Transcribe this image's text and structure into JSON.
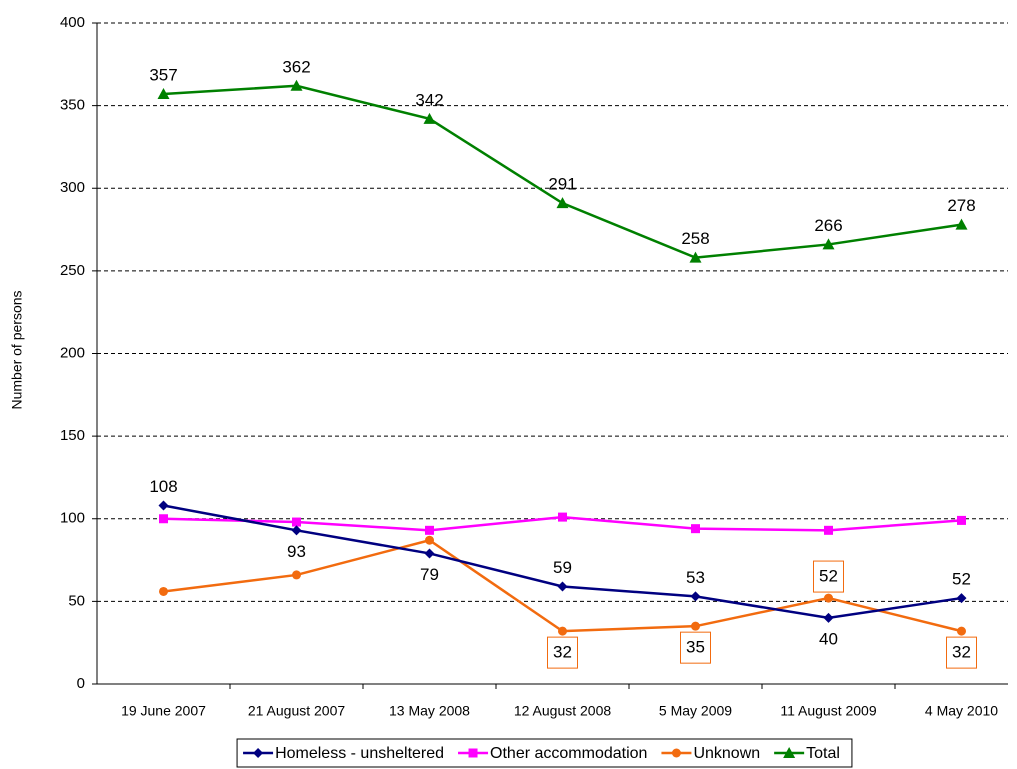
{
  "chart_data": {
    "type": "line",
    "y_label": "Number of persons",
    "categories": [
      "19 June 2007",
      "21 August 2007",
      "13 May 2008",
      "12 August 2008",
      "5 May 2009",
      "11 August 2009",
      "4 May 2010"
    ],
    "series": [
      {
        "name": "Homeless - unsheltered",
        "color": "#000080",
        "marker": "diamond",
        "values": [
          108,
          93,
          79,
          59,
          53,
          40,
          52
        ]
      },
      {
        "name": "Other accommodation",
        "color": "#ff00ff",
        "marker": "square",
        "values": [
          100,
          98,
          93,
          101,
          94,
          93,
          99
        ]
      },
      {
        "name": "Unknown",
        "color": "#f26b0f",
        "marker": "circle",
        "values": [
          56,
          66,
          87,
          32,
          35,
          52,
          32
        ],
        "value_labels": [
          null,
          null,
          null,
          "32",
          "35",
          "52",
          "32"
        ]
      },
      {
        "name": "Total",
        "color": "#008000",
        "marker": "triangle",
        "values": [
          357,
          362,
          342,
          291,
          258,
          266,
          278
        ]
      }
    ],
    "ylim": [
      0,
      400
    ],
    "yticks": [
      0,
      50,
      100,
      150,
      200,
      250,
      300,
      350,
      400
    ],
    "grid": true,
    "legend": "bottom"
  }
}
